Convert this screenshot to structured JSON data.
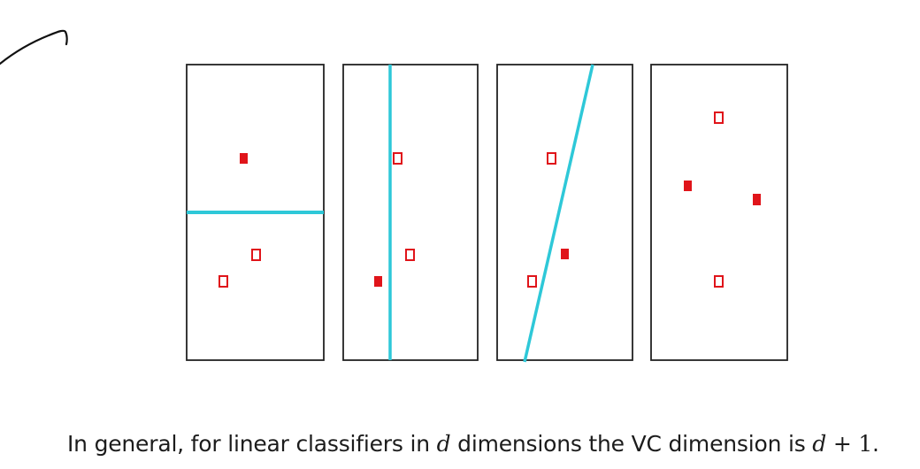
{
  "caption": {
    "prefix": "In general, for linear classifiers in ",
    "var_d": "d",
    "middle": " dimensions the VC dimension is ",
    "formula_var": "d",
    "formula_rest": " + 1",
    "suffix": "."
  },
  "colors": {
    "panel_border": "#222222",
    "separator_line": "#2ec8d8",
    "point_filled": "#e0141a",
    "point_hollow": "#e0141a",
    "pen_stroke": "#111111"
  },
  "panels": [
    {
      "name": "panel-1",
      "separator": "horizontal",
      "points": [
        {
          "label": "positive",
          "filled": true
        },
        {
          "label": "negative",
          "filled": false
        },
        {
          "label": "negative",
          "filled": false
        }
      ]
    },
    {
      "name": "panel-2",
      "separator": "vertical",
      "points": [
        {
          "label": "negative",
          "filled": false
        },
        {
          "label": "negative",
          "filled": false
        },
        {
          "label": "positive",
          "filled": true
        }
      ]
    },
    {
      "name": "panel-3",
      "separator": "diagonal",
      "points": [
        {
          "label": "negative",
          "filled": false
        },
        {
          "label": "positive",
          "filled": true
        },
        {
          "label": "negative",
          "filled": false
        }
      ]
    },
    {
      "name": "panel-4",
      "separator": "none",
      "points": [
        {
          "label": "negative",
          "filled": false
        },
        {
          "label": "positive",
          "filled": true
        },
        {
          "label": "positive",
          "filled": true
        },
        {
          "label": "negative",
          "filled": false
        }
      ]
    }
  ]
}
